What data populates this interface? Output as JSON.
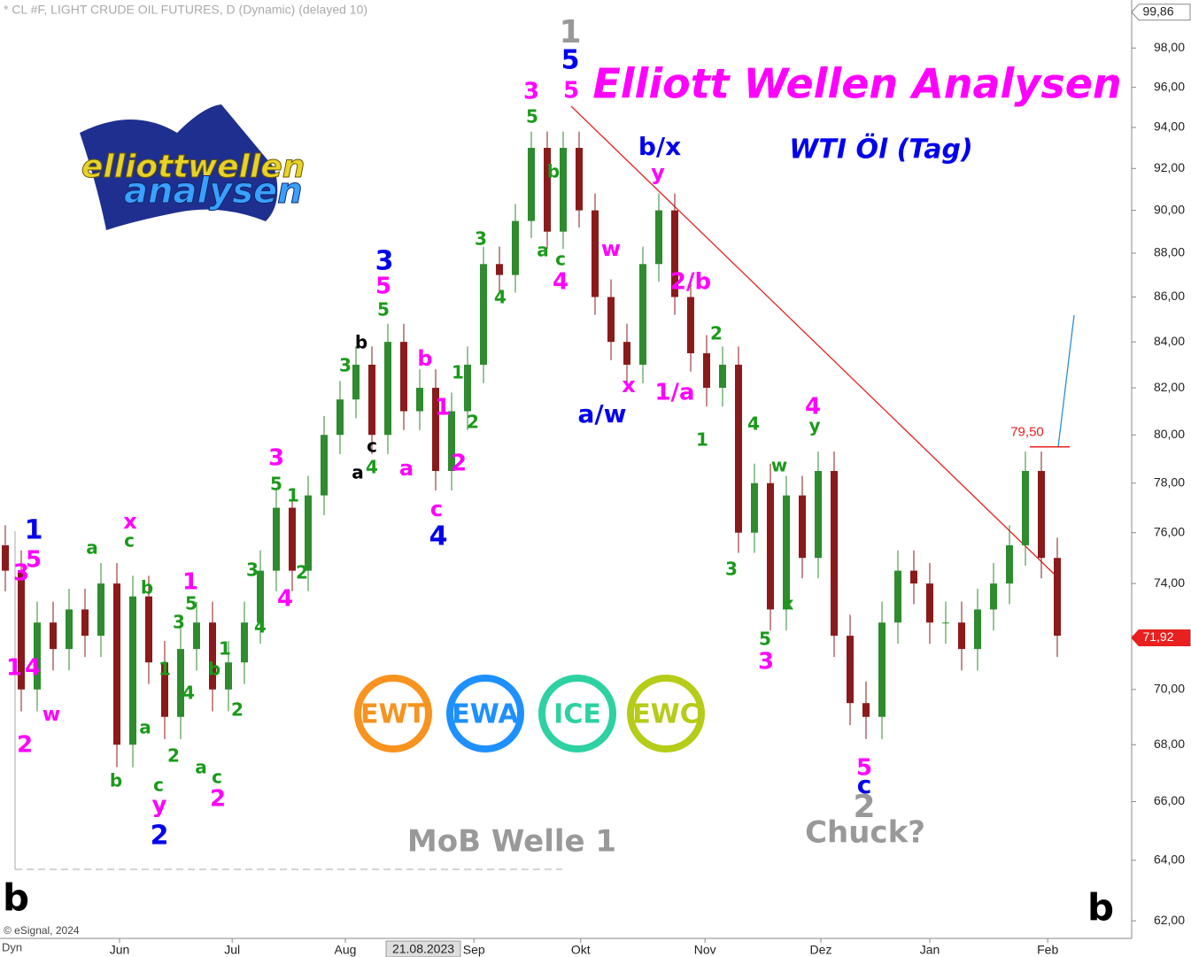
{
  "chart_data": {
    "type": "candlestick",
    "title": "* CL #F, LIGHT CRUDE OIL FUTURES, D (Dynamic) (delayed 10)",
    "heading": "Elliott Wellen Analysen",
    "subheading": "WTI Öl (Tag)",
    "logo": [
      "elliott",
      "wellen",
      "analysen"
    ],
    "badges": [
      {
        "text": "EWT",
        "color": "#f7931e"
      },
      {
        "text": "EWA",
        "color": "#1e90ff"
      },
      {
        "text": "ICE",
        "color": "#2ed1a2"
      },
      {
        "text": "EWC",
        "color": "#b5cc18"
      }
    ],
    "notes": [
      "MoB Welle 1",
      "Chuck?",
      "b",
      "b"
    ],
    "copyright": "© eSignal, 2024",
    "corner": "Dyn",
    "cursor_date": "21.08.2023",
    "log_scale": true,
    "up_color": "#2e8b2e",
    "down_color": "#8b1a1a",
    "x": [
      1,
      4,
      7,
      10,
      13,
      16,
      19,
      22,
      25,
      28,
      31,
      34,
      37,
      40,
      43,
      46,
      49,
      52,
      55,
      58,
      61,
      64,
      67,
      70,
      73,
      76,
      79,
      82,
      85,
      88,
      91,
      94,
      97,
      100,
      103,
      106,
      109,
      112,
      115,
      118,
      121,
      124,
      127,
      130,
      133,
      136,
      139,
      142,
      145,
      148,
      151,
      154,
      157,
      160,
      163,
      166,
      169,
      172,
      175,
      178,
      181,
      184,
      187,
      190,
      193,
      196,
      199
    ],
    "open": [
      75.5,
      74.5,
      70,
      72.5,
      71.5,
      73,
      72,
      74,
      68,
      73.5,
      71,
      69,
      71.5,
      72.5,
      70,
      71,
      72.5,
      74.5,
      77,
      74.5,
      77.5,
      80,
      81.5,
      83,
      80,
      84,
      81,
      82,
      78.5,
      81,
      83,
      87.5,
      87,
      89.5,
      93,
      89,
      93,
      90,
      86,
      84,
      83,
      87.5,
      90,
      86,
      83.5,
      82,
      83,
      76,
      78,
      73,
      77.5,
      75,
      78.5,
      72,
      69.5,
      69,
      72.5,
      74.5,
      74,
      72.5,
      72.5,
      71.5,
      73,
      74,
      75.5,
      78.5,
      75
    ],
    "high": [
      76.3,
      75.3,
      73.3,
      73.3,
      73.8,
      73.8,
      74.8,
      74.8,
      74.3,
      74.3,
      71.8,
      72.3,
      73.3,
      73.3,
      71.8,
      73.3,
      75.3,
      77.8,
      77.8,
      78.3,
      80.8,
      82.3,
      83.8,
      83.8,
      84.8,
      84.8,
      82.8,
      82.8,
      81.8,
      83.8,
      88.3,
      88.3,
      90.3,
      93.8,
      93.8,
      93.8,
      93.8,
      90.8,
      86.8,
      84.8,
      88.3,
      90.8,
      90.8,
      86.8,
      84.3,
      83.8,
      83.8,
      78.8,
      78.8,
      78.3,
      78.3,
      79.3,
      79.3,
      72.8,
      70.3,
      73.3,
      75.3,
      75.3,
      74.8,
      73.3,
      73.3,
      73.8,
      74.8,
      76.3,
      79.3,
      79.3,
      75.8
    ],
    "low": [
      73.7,
      69.2,
      69.2,
      70.7,
      70.7,
      71.2,
      71.2,
      67.2,
      67.2,
      70.2,
      68.2,
      68.2,
      70.7,
      69.2,
      69.2,
      70.2,
      71.7,
      73.7,
      73.7,
      73.7,
      76.7,
      79.2,
      80.7,
      79.2,
      79.2,
      80.2,
      80.2,
      77.7,
      77.7,
      80.2,
      82.2,
      86.2,
      86.2,
      88.7,
      88.2,
      88.2,
      89.2,
      85.2,
      83.2,
      82.2,
      82.2,
      86.7,
      85.2,
      82.7,
      81.2,
      81.2,
      75.2,
      75.2,
      72.2,
      72.2,
      74.2,
      74.2,
      71.2,
      68.7,
      68.2,
      68.2,
      71.7,
      73.2,
      71.7,
      71.7,
      70.7,
      70.7,
      72.2,
      73.2,
      74.7,
      74.2,
      71.2
    ],
    "close": [
      74.5,
      70,
      72.5,
      71.5,
      73,
      72,
      74,
      68,
      73.5,
      71,
      69,
      71.5,
      72.5,
      70,
      71,
      72.5,
      74.5,
      77,
      74.5,
      77.5,
      80,
      81.5,
      83,
      80,
      84,
      81,
      82,
      78.5,
      81,
      83,
      87.5,
      87,
      89.5,
      93,
      89,
      93,
      90,
      86,
      84,
      83,
      87.5,
      90,
      86,
      83.5,
      82,
      83,
      76,
      78,
      73,
      77.5,
      75,
      78.5,
      72,
      69.5,
      69,
      72.5,
      74.5,
      74,
      72.5,
      72.5,
      71.5,
      73,
      74,
      75.5,
      78.5,
      75,
      72
    ],
    "xlim": [
      0,
      213
    ],
    "xticks": [
      {
        "value": 22.5,
        "label": "Jun"
      },
      {
        "value": 43.7,
        "label": "Jul"
      },
      {
        "value": 65,
        "label": "Aug"
      },
      {
        "value": 89.2,
        "label": "Sep"
      },
      {
        "value": 109.3,
        "label": "Okt"
      },
      {
        "value": 132.7,
        "label": "Nov"
      },
      {
        "value": 154.5,
        "label": "Dez"
      },
      {
        "value": 175,
        "label": "Jan"
      },
      {
        "value": 197.2,
        "label": "Feb"
      }
    ],
    "ylim": [
      61.43,
      100.5
    ],
    "yticks": [
      {
        "value": 62,
        "label": "62,00"
      },
      {
        "value": 64,
        "label": "64,00"
      },
      {
        "value": 66,
        "label": "66,00"
      },
      {
        "value": 68,
        "label": "68,00"
      },
      {
        "value": 70,
        "label": "70,00"
      },
      {
        "value": 72,
        "label": "72,00"
      },
      {
        "value": 74,
        "label": "74,00"
      },
      {
        "value": 76,
        "label": "76,00"
      },
      {
        "value": 78,
        "label": "78,00"
      },
      {
        "value": 80,
        "label": "80,00"
      },
      {
        "value": 82,
        "label": "82,00"
      },
      {
        "value": 84,
        "label": "84,00"
      },
      {
        "value": 86,
        "label": "86,00"
      },
      {
        "value": 88,
        "label": "88,00"
      },
      {
        "value": 90,
        "label": "90,00"
      },
      {
        "value": 92,
        "label": "92,00"
      },
      {
        "value": 94,
        "label": "94,00"
      },
      {
        "value": 96,
        "label": "96,00"
      },
      {
        "value": 98,
        "label": "98,00"
      }
    ],
    "level": {
      "value": 79.5,
      "label": "79,50"
    },
    "last_price": {
      "value": 71.92,
      "label": "71,92"
    },
    "top_price": {
      "value": 99.86,
      "label": "99,86"
    },
    "wave_labels": [
      {
        "text": "1",
        "color": "#0000ee"
      },
      {
        "text": "5",
        "color": "#ff00ff"
      },
      {
        "text": "3",
        "color": "#ff00ff"
      },
      {
        "text": "1",
        "color": "#ff00ff"
      },
      {
        "text": "4",
        "color": "#ff00ff"
      },
      {
        "text": "2",
        "color": "#ff00ff"
      },
      {
        "text": "w",
        "color": "#ff00ff"
      },
      {
        "text": "a",
        "color": "#1a9a1a"
      },
      {
        "text": "x",
        "color": "#ff00ff"
      },
      {
        "text": "c",
        "color": "#1a9a1a"
      },
      {
        "text": "b",
        "color": "#1a9a1a"
      },
      {
        "text": "b",
        "color": "#1a9a1a"
      },
      {
        "text": "a",
        "color": "#1a9a1a"
      },
      {
        "text": "c",
        "color": "#1a9a1a"
      },
      {
        "text": "y",
        "color": "#ff00ff"
      },
      {
        "text": "2",
        "color": "#0000ee"
      },
      {
        "text": "1",
        "color": "#1a9a1a"
      },
      {
        "text": "2",
        "color": "#1a9a1a"
      },
      {
        "text": "3",
        "color": "#1a9a1a"
      },
      {
        "text": "4",
        "color": "#1a9a1a"
      },
      {
        "text": "5",
        "color": "#1a9a1a"
      },
      {
        "text": "1",
        "color": "#ff00ff"
      },
      {
        "text": "a",
        "color": "#1a9a1a"
      },
      {
        "text": "c",
        "color": "#1a9a1a"
      },
      {
        "text": "2",
        "color": "#ff00ff"
      },
      {
        "text": "b",
        "color": "#1a9a1a"
      },
      {
        "text": "1",
        "color": "#1a9a1a"
      },
      {
        "text": "2",
        "color": "#1a9a1a"
      },
      {
        "text": "3",
        "color": "#1a9a1a"
      },
      {
        "text": "4",
        "color": "#1a9a1a"
      },
      {
        "text": "5",
        "color": "#1a9a1a"
      },
      {
        "text": "3",
        "color": "#ff00ff"
      },
      {
        "text": "4",
        "color": "#ff00ff"
      },
      {
        "text": "1",
        "color": "#1a9a1a"
      },
      {
        "text": "2",
        "color": "#1a9a1a"
      },
      {
        "text": "3",
        "color": "#1a9a1a"
      },
      {
        "text": "b",
        "color": "#000000"
      },
      {
        "text": "a",
        "color": "#000000"
      },
      {
        "text": "c",
        "color": "#000000"
      },
      {
        "text": "4",
        "color": "#1a9a1a"
      },
      {
        "text": "5",
        "color": "#1a9a1a"
      },
      {
        "text": "5",
        "color": "#ff00ff"
      },
      {
        "text": "3",
        "color": "#0000ee"
      },
      {
        "text": "b",
        "color": "#ff00ff"
      },
      {
        "text": "a",
        "color": "#ff00ff"
      },
      {
        "text": "1",
        "color": "#ff00ff"
      },
      {
        "text": "1",
        "color": "#1a9a1a"
      },
      {
        "text": "2",
        "color": "#1a9a1a"
      },
      {
        "text": "2",
        "color": "#ff00ff"
      },
      {
        "text": "c",
        "color": "#ff00ff"
      },
      {
        "text": "4",
        "color": "#0000ee"
      },
      {
        "text": "3",
        "color": "#1a9a1a"
      },
      {
        "text": "4",
        "color": "#1a9a1a"
      },
      {
        "text": "5",
        "color": "#1a9a1a"
      },
      {
        "text": "3",
        "color": "#ff00ff"
      },
      {
        "text": "b",
        "color": "#1a9a1a"
      },
      {
        "text": "a",
        "color": "#1a9a1a"
      },
      {
        "text": "c",
        "color": "#1a9a1a"
      },
      {
        "text": "4",
        "color": "#ff00ff"
      },
      {
        "text": "1",
        "color": "#999999"
      },
      {
        "text": "5",
        "color": "#0000ee"
      },
      {
        "text": "5",
        "color": "#ff00ff"
      },
      {
        "text": "w",
        "color": "#ff00ff"
      },
      {
        "text": "x",
        "color": "#ff00ff"
      },
      {
        "text": "a/w",
        "color": "#0000ee"
      },
      {
        "text": "b/x",
        "color": "#0000ee"
      },
      {
        "text": "y",
        "color": "#ff00ff"
      },
      {
        "text": "2/b",
        "color": "#ff00ff"
      },
      {
        "text": "1/a",
        "color": "#ff00ff"
      },
      {
        "text": "2",
        "color": "#1a9a1a"
      },
      {
        "text": "1",
        "color": "#1a9a1a"
      },
      {
        "text": "4",
        "color": "#1a9a1a"
      },
      {
        "text": "3",
        "color": "#1a9a1a"
      },
      {
        "text": "w",
        "color": "#1a9a1a"
      },
      {
        "text": "x",
        "color": "#1a9a1a"
      },
      {
        "text": "5",
        "color": "#1a9a1a"
      },
      {
        "text": "3",
        "color": "#ff00ff"
      },
      {
        "text": "4",
        "color": "#ff00ff"
      },
      {
        "text": "y",
        "color": "#1a9a1a"
      },
      {
        "text": "5",
        "color": "#ff00ff"
      },
      {
        "text": "c",
        "color": "#0000ee"
      },
      {
        "text": "2",
        "color": "#999999"
      }
    ]
  }
}
